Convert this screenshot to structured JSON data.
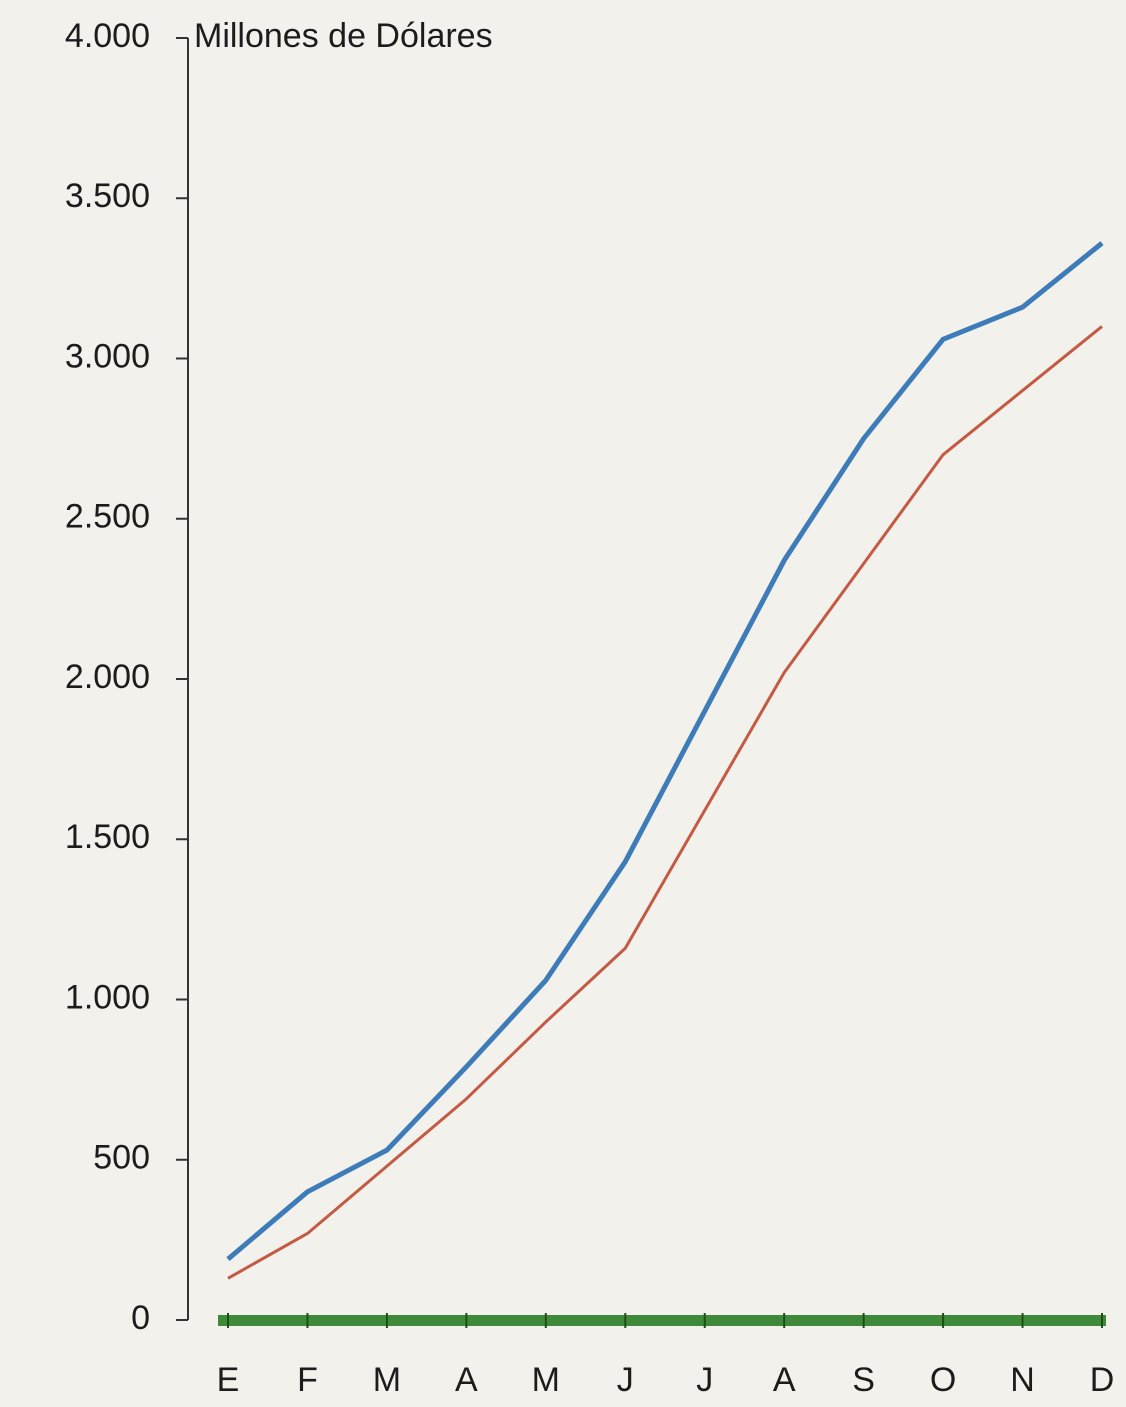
{
  "chart_data": {
    "type": "line",
    "ylabel": "Millones de Dólares",
    "categories": [
      "E",
      "F",
      "M",
      "A",
      "M",
      "J",
      "J",
      "A",
      "S",
      "O",
      "N",
      "D"
    ],
    "series": [
      {
        "color": "#3d7cb9",
        "values": [
          190,
          400,
          530,
          790,
          1060,
          1430,
          1900,
          2370,
          2750,
          3060,
          3160,
          3360
        ]
      },
      {
        "color": "#c45a44",
        "values": [
          130,
          270,
          480,
          690,
          930,
          1160,
          1590,
          2020,
          2360,
          2700,
          2900,
          3100
        ]
      }
    ],
    "ylim": [
      0,
      4000
    ],
    "yticks": [
      0,
      500,
      {
        "value": 1000,
        "label": "1.000"
      },
      {
        "value": 1500,
        "label": "1.500"
      },
      {
        "value": 2000,
        "label": "2.000"
      },
      {
        "value": 2500,
        "label": "2.500"
      },
      {
        "value": 3000,
        "label": "3.000"
      },
      {
        "value": 3500,
        "label": "3.500"
      },
      {
        "value": 4000,
        "label": "4.000"
      }
    ],
    "axis_color": "#3f8a3a"
  }
}
